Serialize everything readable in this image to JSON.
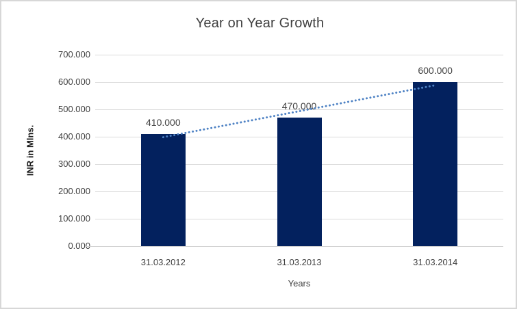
{
  "chart_data": {
    "type": "bar",
    "title": "Year on Year Growth",
    "xlabel": "Years",
    "ylabel": "INR in Mlns.",
    "categories": [
      "31.03.2012",
      "31.03.2013",
      "31.03.2014"
    ],
    "values": [
      410,
      470,
      600
    ],
    "value_labels": [
      "410.000",
      "470.000",
      "600.000"
    ],
    "y_ticks": [
      "0.000",
      "100.000",
      "200.000",
      "300.000",
      "400.000",
      "500.000",
      "600.000",
      "700.000"
    ],
    "ylim": [
      0,
      700
    ],
    "gridlines": true,
    "legend": "none",
    "trendline": {
      "type": "linear",
      "style": "dotted"
    },
    "colors": {
      "bar": "#03215E",
      "trendline": "#4E82C4",
      "gridline": "#D9D9D9",
      "text": "#404040",
      "frame_border": "#D7D7D7"
    }
  }
}
